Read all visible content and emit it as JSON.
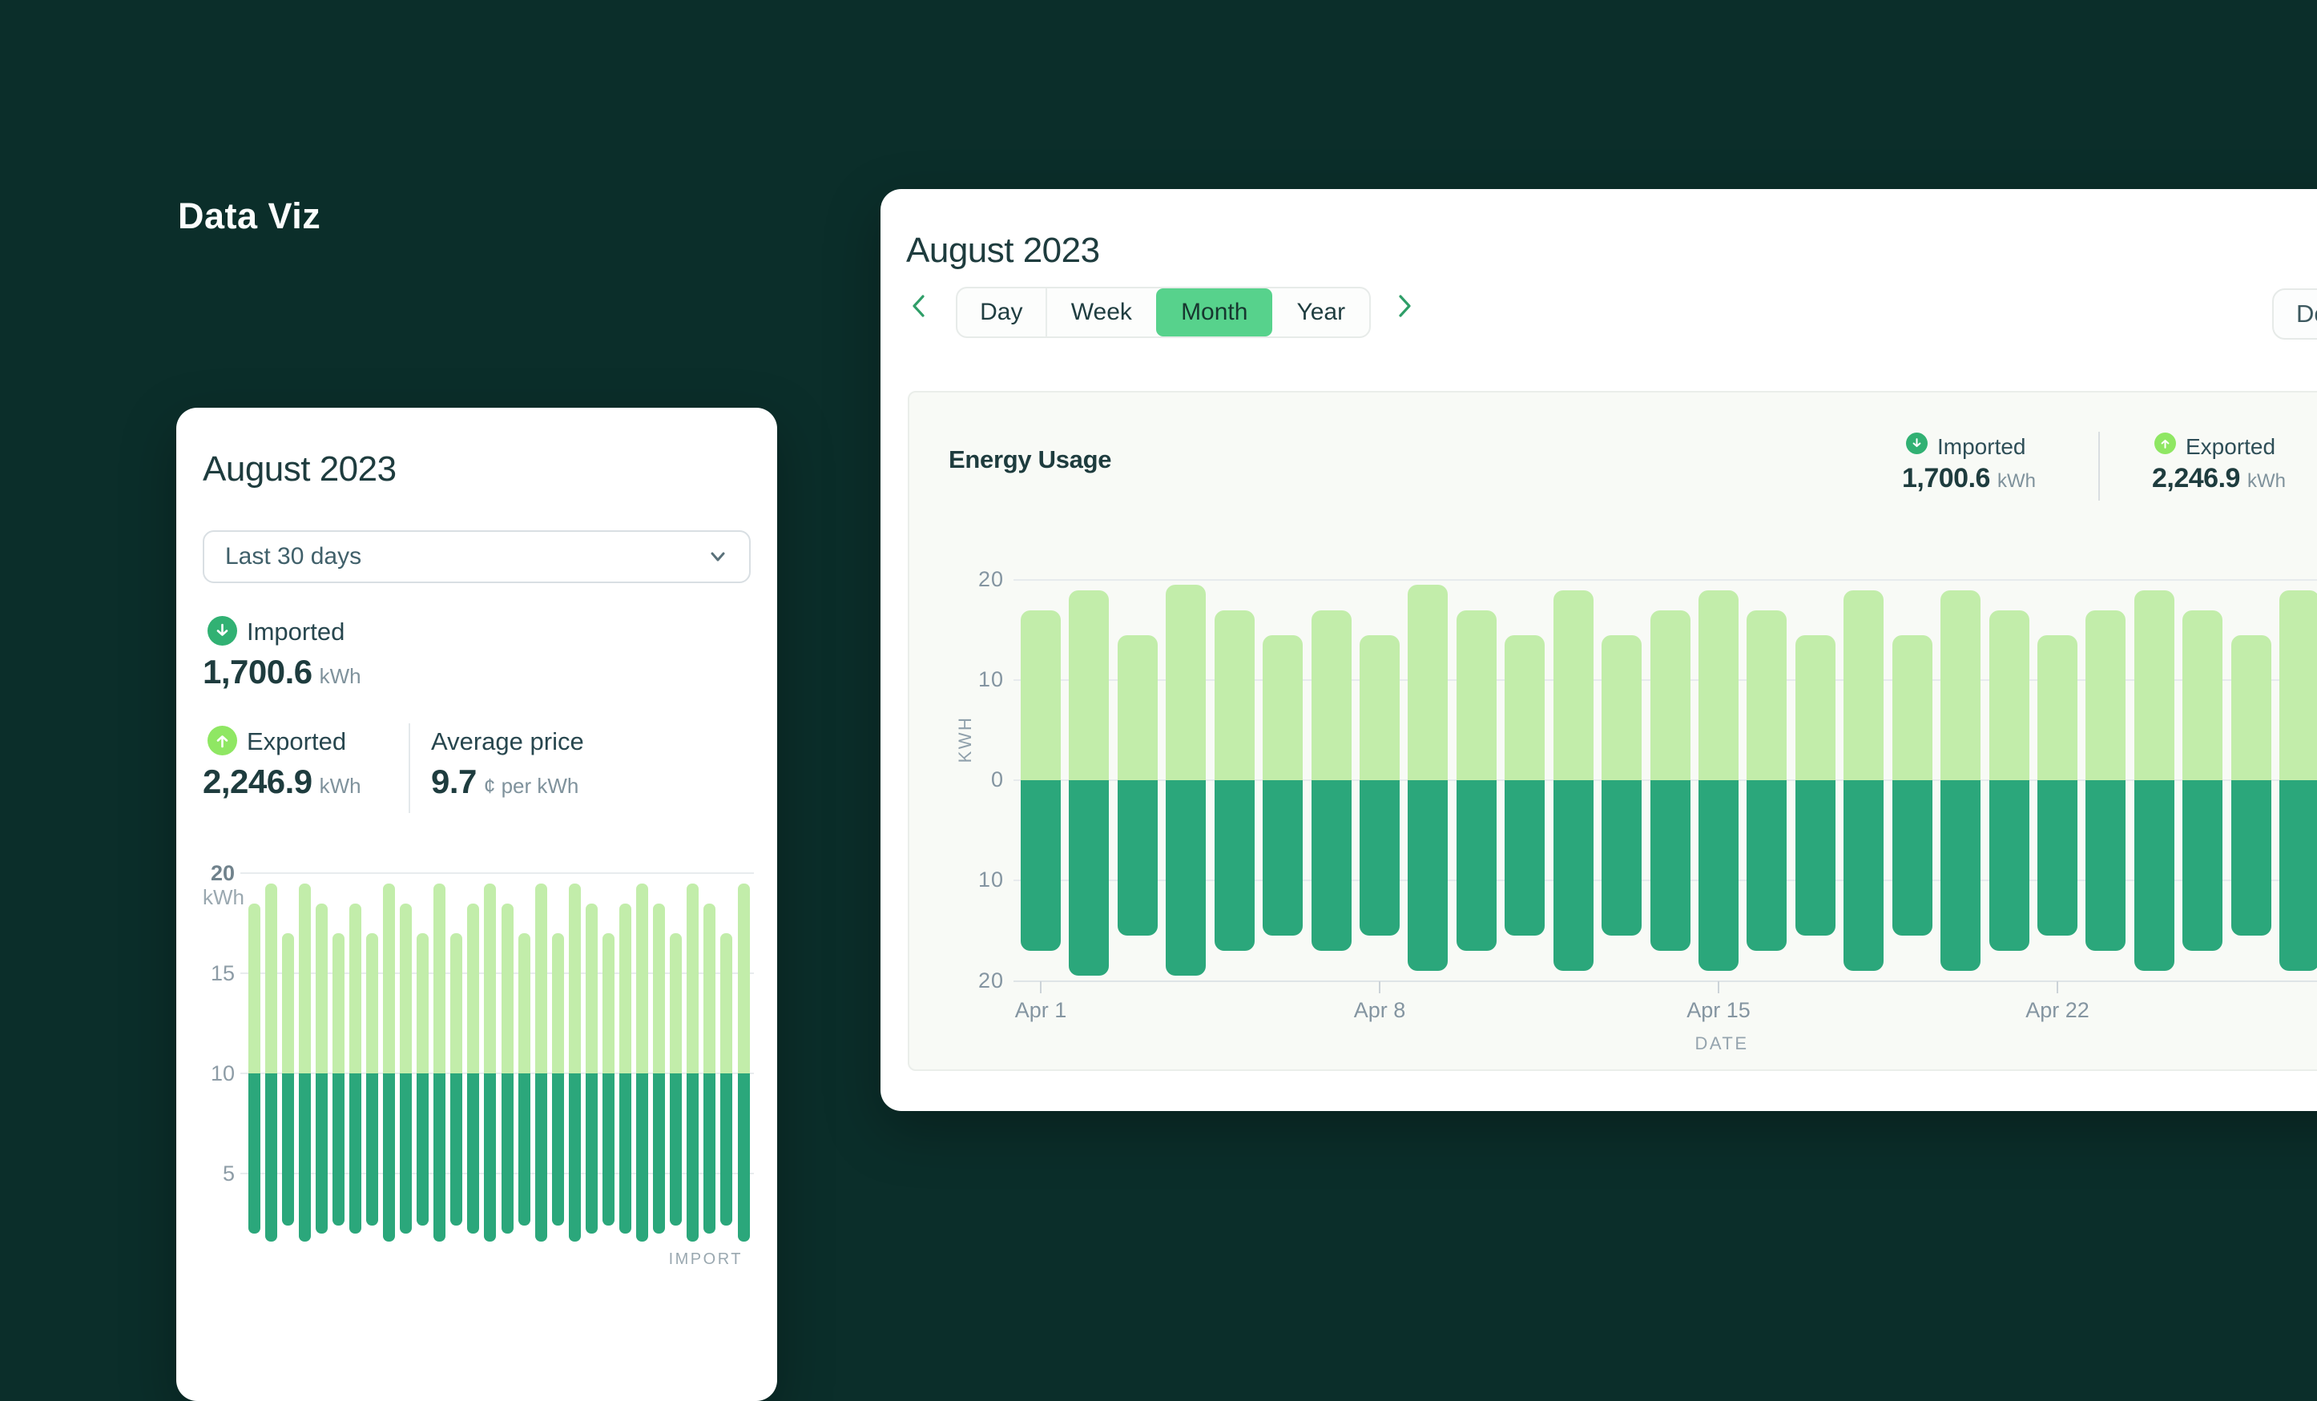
{
  "app": {
    "logo": "Data Viz"
  },
  "colors": {
    "background": "#0b2e2a",
    "card": "#ffffff",
    "ink": "#1e3c3e",
    "axis_gray": "#8495a1",
    "import_bar_light_green": "#c2edaa",
    "export_bar_dark_green": "#2ba77b",
    "imported_icon_green": "#31b173",
    "exported_icon_green": "#8fe763",
    "active_tab_green": "#57d28c",
    "chevron_green": "#2f9e68"
  },
  "left_card": {
    "title": "August 2023",
    "dropdown": {
      "value": "Last 30 days"
    },
    "stats": {
      "imported": {
        "label": "Imported",
        "value": "1,700.6",
        "unit": "kWh"
      },
      "exported": {
        "label": "Exported",
        "value": "2,246.9",
        "unit": "kWh"
      },
      "average_price": {
        "label": "Average price",
        "value": "9.7",
        "unit": "¢ per kWh"
      }
    },
    "chart_tag": "IMPORT",
    "axis": {
      "top_tick": "20",
      "top_unit": "kWh",
      "tick_15": "15",
      "tick_10": "10",
      "tick_5": "5"
    }
  },
  "right_card": {
    "title": "August 2023",
    "tabs": [
      "Day",
      "Week",
      "Month",
      "Year"
    ],
    "active_tab": "Month",
    "download_label": "Do",
    "panel": {
      "title": "Energy Usage",
      "legend": {
        "imported": {
          "label": "Imported",
          "value": "1,700.6",
          "unit": "kWh"
        },
        "exported": {
          "label": "Exported",
          "value": "2,246.9",
          "unit": "kWh"
        }
      },
      "ylabel": "KWH",
      "xlabel": "DATE",
      "yticks": [
        "20",
        "10",
        "0",
        "10",
        "20"
      ],
      "xticks": [
        "Apr 1",
        "Apr 8",
        "Apr 15",
        "Apr 22"
      ]
    }
  },
  "chart_data": [
    {
      "type": "bar",
      "title": "IMPORT (mini chart, left card)",
      "ylabel": "kWh",
      "ylim": [
        0,
        20
      ],
      "gridlines": [
        20,
        15,
        10,
        5
      ],
      "color_split_at": 10,
      "note": "single-series import bars; light green above 10 kWh, dark green below; bottom of card cut off by viewport",
      "values": [
        18.5,
        19.5,
        17,
        19.5,
        18.5,
        17,
        18.5,
        17,
        19.5,
        18.5,
        17,
        19.5,
        17,
        18.5,
        19.5,
        18.5,
        17,
        19.5,
        17,
        19.5,
        18.5,
        17,
        18.5,
        19.5,
        18.5,
        17,
        19.5,
        18.5,
        17,
        19.5
      ],
      "bar_lower_end": [
        2.0,
        1.6,
        2.4,
        1.6,
        2.0,
        2.4,
        2.0,
        2.4,
        1.6,
        2.0,
        2.4,
        1.6,
        2.4,
        2.0,
        1.6,
        2.0,
        2.4,
        1.6,
        2.4,
        1.6,
        2.0,
        2.4,
        2.0,
        1.6,
        2.0,
        2.4,
        1.6,
        2.0,
        2.4,
        1.6
      ]
    },
    {
      "type": "bar",
      "title": "Energy Usage (diverging stacked bars)",
      "xlabel": "DATE",
      "ylabel": "KWH",
      "ylim": [
        -20,
        20
      ],
      "xtick_indices": [
        0,
        7,
        14,
        21
      ],
      "xtick_labels": [
        "Apr 1",
        "Apr 8",
        "Apr 15",
        "Apr 22"
      ],
      "series": [
        {
          "name": "Imported (above zero, light green)",
          "values": [
            17,
            19,
            14.5,
            19.5,
            17,
            14.5,
            17,
            14.5,
            19.5,
            17,
            14.5,
            19,
            14.5,
            17,
            19,
            17,
            14.5,
            19,
            14.5,
            19,
            17,
            14.5,
            17,
            19,
            17,
            14.5,
            19
          ]
        },
        {
          "name": "Exported (below zero, dark green, depth)",
          "values": [
            17,
            19.5,
            15.5,
            19.5,
            17,
            15.5,
            17,
            15.5,
            19,
            17,
            15.5,
            19,
            15.5,
            17,
            19,
            17,
            15.5,
            19,
            15.5,
            19,
            17,
            15.5,
            17,
            19,
            17,
            15.5,
            19
          ]
        }
      ]
    }
  ]
}
